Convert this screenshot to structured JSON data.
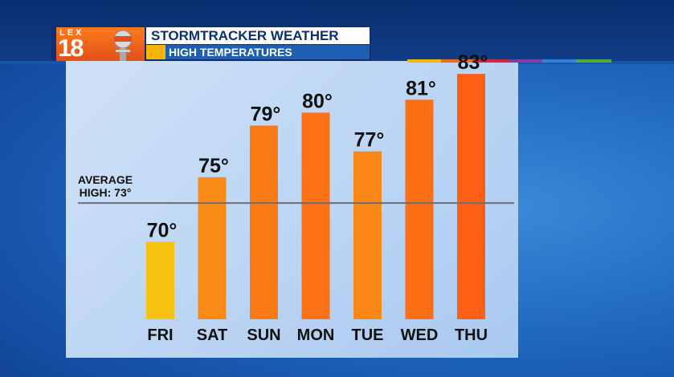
{
  "header": {
    "logo_top": "LEX",
    "logo_number": "18",
    "title": "STORMTRACKER WEATHER",
    "subtitle": "HIGH TEMPERATURES"
  },
  "colors": {
    "header_navy": "#0d2f73",
    "subtitle_blue": "#1e5fb3",
    "accent_yellow": "#f7b400",
    "logo_orange": "#e2511b",
    "average_line": "#6b6f75"
  },
  "chart_data": {
    "type": "bar",
    "categories": [
      "FRI",
      "SAT",
      "SUN",
      "MON",
      "TUE",
      "WED",
      "THU"
    ],
    "values": [
      70,
      75,
      79,
      80,
      77,
      81,
      83
    ],
    "value_labels": [
      "70°",
      "75°",
      "79°",
      "80°",
      "77°",
      "81°",
      "83°"
    ],
    "bar_colors": [
      "#f7c20f",
      "#fb8a17",
      "#fb7a16",
      "#fc7115",
      "#fb8716",
      "#fd6f15",
      "#fd5f15"
    ],
    "ylim": [
      64,
      84
    ],
    "grid": false,
    "reference_line": {
      "value": 73,
      "label_lines": [
        "AVERAGE",
        "HIGH: 73°"
      ]
    }
  }
}
